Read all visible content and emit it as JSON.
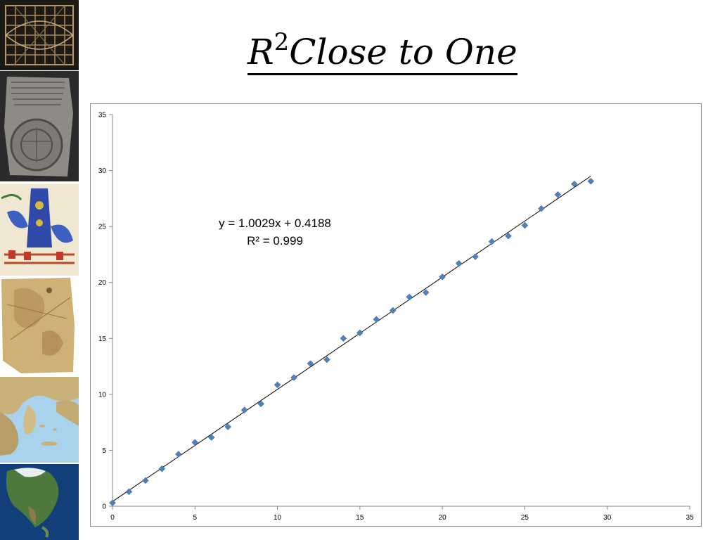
{
  "slide": {
    "title_text": "Close to One",
    "title_var": "R",
    "title_sup": "2"
  },
  "thumbnails": [
    {
      "name": "grid-chart-thumbnail"
    },
    {
      "name": "clay-tablet-map-thumbnail"
    },
    {
      "name": "cosmological-map-thumbnail"
    },
    {
      "name": "parchment-map-thumbnail"
    },
    {
      "name": "aegean-map-thumbnail"
    },
    {
      "name": "north-america-satellite-thumbnail"
    }
  ],
  "chart_data": {
    "type": "scatter",
    "marker_color": "#4f81bd",
    "trendline_color": "#000000",
    "x": [
      0,
      1,
      2,
      3,
      4,
      5,
      6,
      7,
      8,
      9,
      10,
      11,
      12,
      13,
      14,
      15,
      16,
      17,
      18,
      19,
      20,
      21,
      22,
      23,
      24,
      25,
      26,
      27,
      28,
      29
    ],
    "y": [
      0.3,
      1.3,
      2.3,
      3.35,
      4.65,
      5.7,
      6.15,
      7.1,
      8.6,
      9.15,
      10.85,
      11.5,
      12.75,
      13.1,
      15.0,
      15.5,
      16.7,
      17.5,
      18.7,
      19.1,
      20.5,
      21.7,
      22.3,
      23.65,
      24.15,
      25.1,
      26.6,
      27.85,
      28.8,
      29.05
    ],
    "trendline": {
      "slope": 1.0029,
      "intercept": 0.4188,
      "x_range": [
        0,
        29
      ]
    },
    "annotation": {
      "equation": "y = 1.0029x + 0.4188",
      "r_squared": "R² = 0.999"
    },
    "xlim": [
      0,
      35
    ],
    "ylim": [
      0,
      35
    ],
    "xticks": [
      0,
      5,
      10,
      15,
      20,
      25,
      30,
      35
    ],
    "yticks": [
      0,
      5,
      10,
      15,
      20,
      25,
      30,
      35
    ],
    "xlabel": "",
    "ylabel": "",
    "title": "",
    "grid": false,
    "legend": "none"
  }
}
